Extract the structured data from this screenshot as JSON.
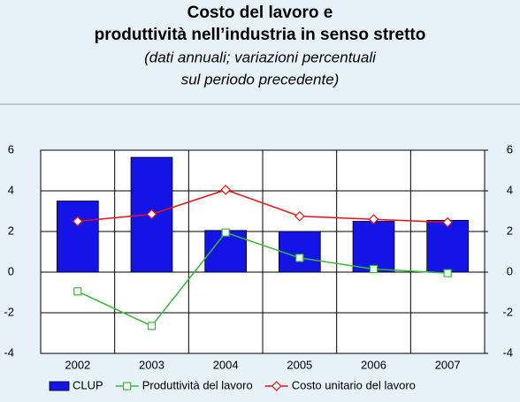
{
  "chart_data": {
    "type": "bar-line",
    "title": [
      "Costo del lavoro e",
      "produttività nell’industria in senso stretto"
    ],
    "subtitle": [
      "(dati annuali; variazioni percentuali",
      "sul periodo precedente)"
    ],
    "categories": [
      "2002",
      "2003",
      "2004",
      "2005",
      "2006",
      "2007"
    ],
    "series": [
      {
        "name": "CLUP",
        "type": "bar",
        "color": "#1414e6",
        "values": [
          3.5,
          5.65,
          2.05,
          2.0,
          2.5,
          2.55
        ]
      },
      {
        "name": "Produttività del lavoro",
        "type": "line",
        "marker": "square",
        "color": "#33bb33",
        "values": [
          -0.95,
          -2.65,
          1.95,
          0.7,
          0.15,
          -0.05
        ]
      },
      {
        "name": "Costo unitario del lavoro",
        "type": "line",
        "marker": "diamond",
        "color": "#ee1111",
        "values": [
          2.5,
          2.85,
          4.05,
          2.75,
          2.6,
          2.45
        ]
      }
    ],
    "ylim": [
      -4,
      6
    ],
    "yticks": [
      -4,
      -2,
      0,
      2,
      4,
      6
    ],
    "y2lim": [
      -4,
      6
    ],
    "y2ticks": [
      -4,
      -2,
      0,
      2,
      4,
      6
    ],
    "grid": true
  }
}
